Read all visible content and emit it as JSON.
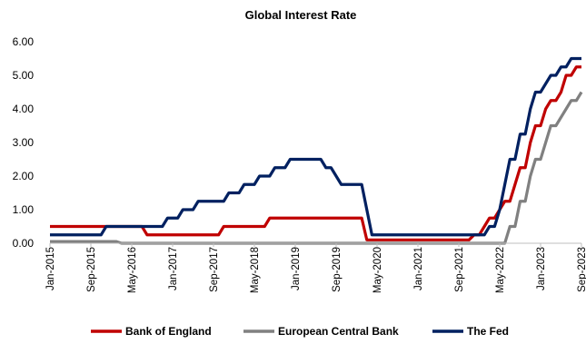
{
  "chart_data": {
    "type": "line",
    "title": "Global  Interest Rate",
    "xlabel": "",
    "ylabel": "",
    "ylim": [
      0,
      6
    ],
    "yticks": [
      "0.00",
      "1.00",
      "2.00",
      "3.00",
      "4.00",
      "5.00",
      "6.00"
    ],
    "x_tick_labels": [
      "Jan-2015",
      "Sep-2015",
      "May-2016",
      "Jan-2017",
      "Sep-2017",
      "May-2018",
      "Jan-2019",
      "Sep-2019",
      "May-2020",
      "Jan-2021",
      "Sep-2021",
      "May-2022",
      "Jan-2023",
      "Sep-2023"
    ],
    "x_range": [
      "2015-01",
      "2023-09"
    ],
    "grid": false,
    "legend_position": "bottom",
    "series": [
      {
        "name": "Bank of England",
        "color": "#c00000",
        "points": [
          [
            "2015-01",
            0.5
          ],
          [
            "2016-07",
            0.5
          ],
          [
            "2016-08",
            0.25
          ],
          [
            "2017-10",
            0.25
          ],
          [
            "2017-11",
            0.5
          ],
          [
            "2018-07",
            0.5
          ],
          [
            "2018-08",
            0.75
          ],
          [
            "2020-02",
            0.75
          ],
          [
            "2020-03",
            0.1
          ],
          [
            "2021-11",
            0.1
          ],
          [
            "2021-12",
            0.25
          ],
          [
            "2022-01",
            0.25
          ],
          [
            "2022-02",
            0.5
          ],
          [
            "2022-03",
            0.75
          ],
          [
            "2022-04",
            0.75
          ],
          [
            "2022-05",
            1.0
          ],
          [
            "2022-06",
            1.25
          ],
          [
            "2022-07",
            1.25
          ],
          [
            "2022-08",
            1.75
          ],
          [
            "2022-09",
            2.25
          ],
          [
            "2022-10",
            2.25
          ],
          [
            "2022-11",
            3.0
          ],
          [
            "2022-12",
            3.5
          ],
          [
            "2023-01",
            3.5
          ],
          [
            "2023-02",
            4.0
          ],
          [
            "2023-03",
            4.25
          ],
          [
            "2023-04",
            4.25
          ],
          [
            "2023-05",
            4.5
          ],
          [
            "2023-06",
            5.0
          ],
          [
            "2023-07",
            5.0
          ],
          [
            "2023-08",
            5.25
          ],
          [
            "2023-09",
            5.25
          ]
        ]
      },
      {
        "name": "European Central Bank",
        "color": "#808080",
        "points": [
          [
            "2015-01",
            0.05
          ],
          [
            "2016-02",
            0.05
          ],
          [
            "2016-03",
            0.0
          ],
          [
            "2022-06",
            0.0
          ],
          [
            "2022-07",
            0.5
          ],
          [
            "2022-08",
            0.5
          ],
          [
            "2022-09",
            1.25
          ],
          [
            "2022-10",
            1.25
          ],
          [
            "2022-11",
            2.0
          ],
          [
            "2022-12",
            2.5
          ],
          [
            "2023-01",
            2.5
          ],
          [
            "2023-02",
            3.0
          ],
          [
            "2023-03",
            3.5
          ],
          [
            "2023-04",
            3.5
          ],
          [
            "2023-05",
            3.75
          ],
          [
            "2023-06",
            4.0
          ],
          [
            "2023-07",
            4.25
          ],
          [
            "2023-08",
            4.25
          ],
          [
            "2023-09",
            4.5
          ]
        ]
      },
      {
        "name": "The Fed",
        "color": "#002060",
        "points": [
          [
            "2015-01",
            0.25
          ],
          [
            "2015-11",
            0.25
          ],
          [
            "2015-12",
            0.5
          ],
          [
            "2016-11",
            0.5
          ],
          [
            "2016-12",
            0.75
          ],
          [
            "2017-02",
            0.75
          ],
          [
            "2017-03",
            1.0
          ],
          [
            "2017-05",
            1.0
          ],
          [
            "2017-06",
            1.25
          ],
          [
            "2017-11",
            1.25
          ],
          [
            "2017-12",
            1.5
          ],
          [
            "2018-02",
            1.5
          ],
          [
            "2018-03",
            1.75
          ],
          [
            "2018-05",
            1.75
          ],
          [
            "2018-06",
            2.0
          ],
          [
            "2018-08",
            2.0
          ],
          [
            "2018-09",
            2.25
          ],
          [
            "2018-11",
            2.25
          ],
          [
            "2018-12",
            2.5
          ],
          [
            "2019-06",
            2.5
          ],
          [
            "2019-07",
            2.25
          ],
          [
            "2019-08",
            2.25
          ],
          [
            "2019-09",
            2.0
          ],
          [
            "2019-10",
            1.75
          ],
          [
            "2020-02",
            1.75
          ],
          [
            "2020-03",
            1.0
          ],
          [
            "2020-04",
            0.25
          ],
          [
            "2022-02",
            0.25
          ],
          [
            "2022-03",
            0.5
          ],
          [
            "2022-04",
            0.5
          ],
          [
            "2022-05",
            1.0
          ],
          [
            "2022-06",
            1.75
          ],
          [
            "2022-07",
            2.5
          ],
          [
            "2022-08",
            2.5
          ],
          [
            "2022-09",
            3.25
          ],
          [
            "2022-10",
            3.25
          ],
          [
            "2022-11",
            4.0
          ],
          [
            "2022-12",
            4.5
          ],
          [
            "2023-01",
            4.5
          ],
          [
            "2023-02",
            4.75
          ],
          [
            "2023-03",
            5.0
          ],
          [
            "2023-04",
            5.0
          ],
          [
            "2023-05",
            5.25
          ],
          [
            "2023-06",
            5.25
          ],
          [
            "2023-07",
            5.5
          ],
          [
            "2023-09",
            5.5
          ]
        ]
      }
    ]
  }
}
